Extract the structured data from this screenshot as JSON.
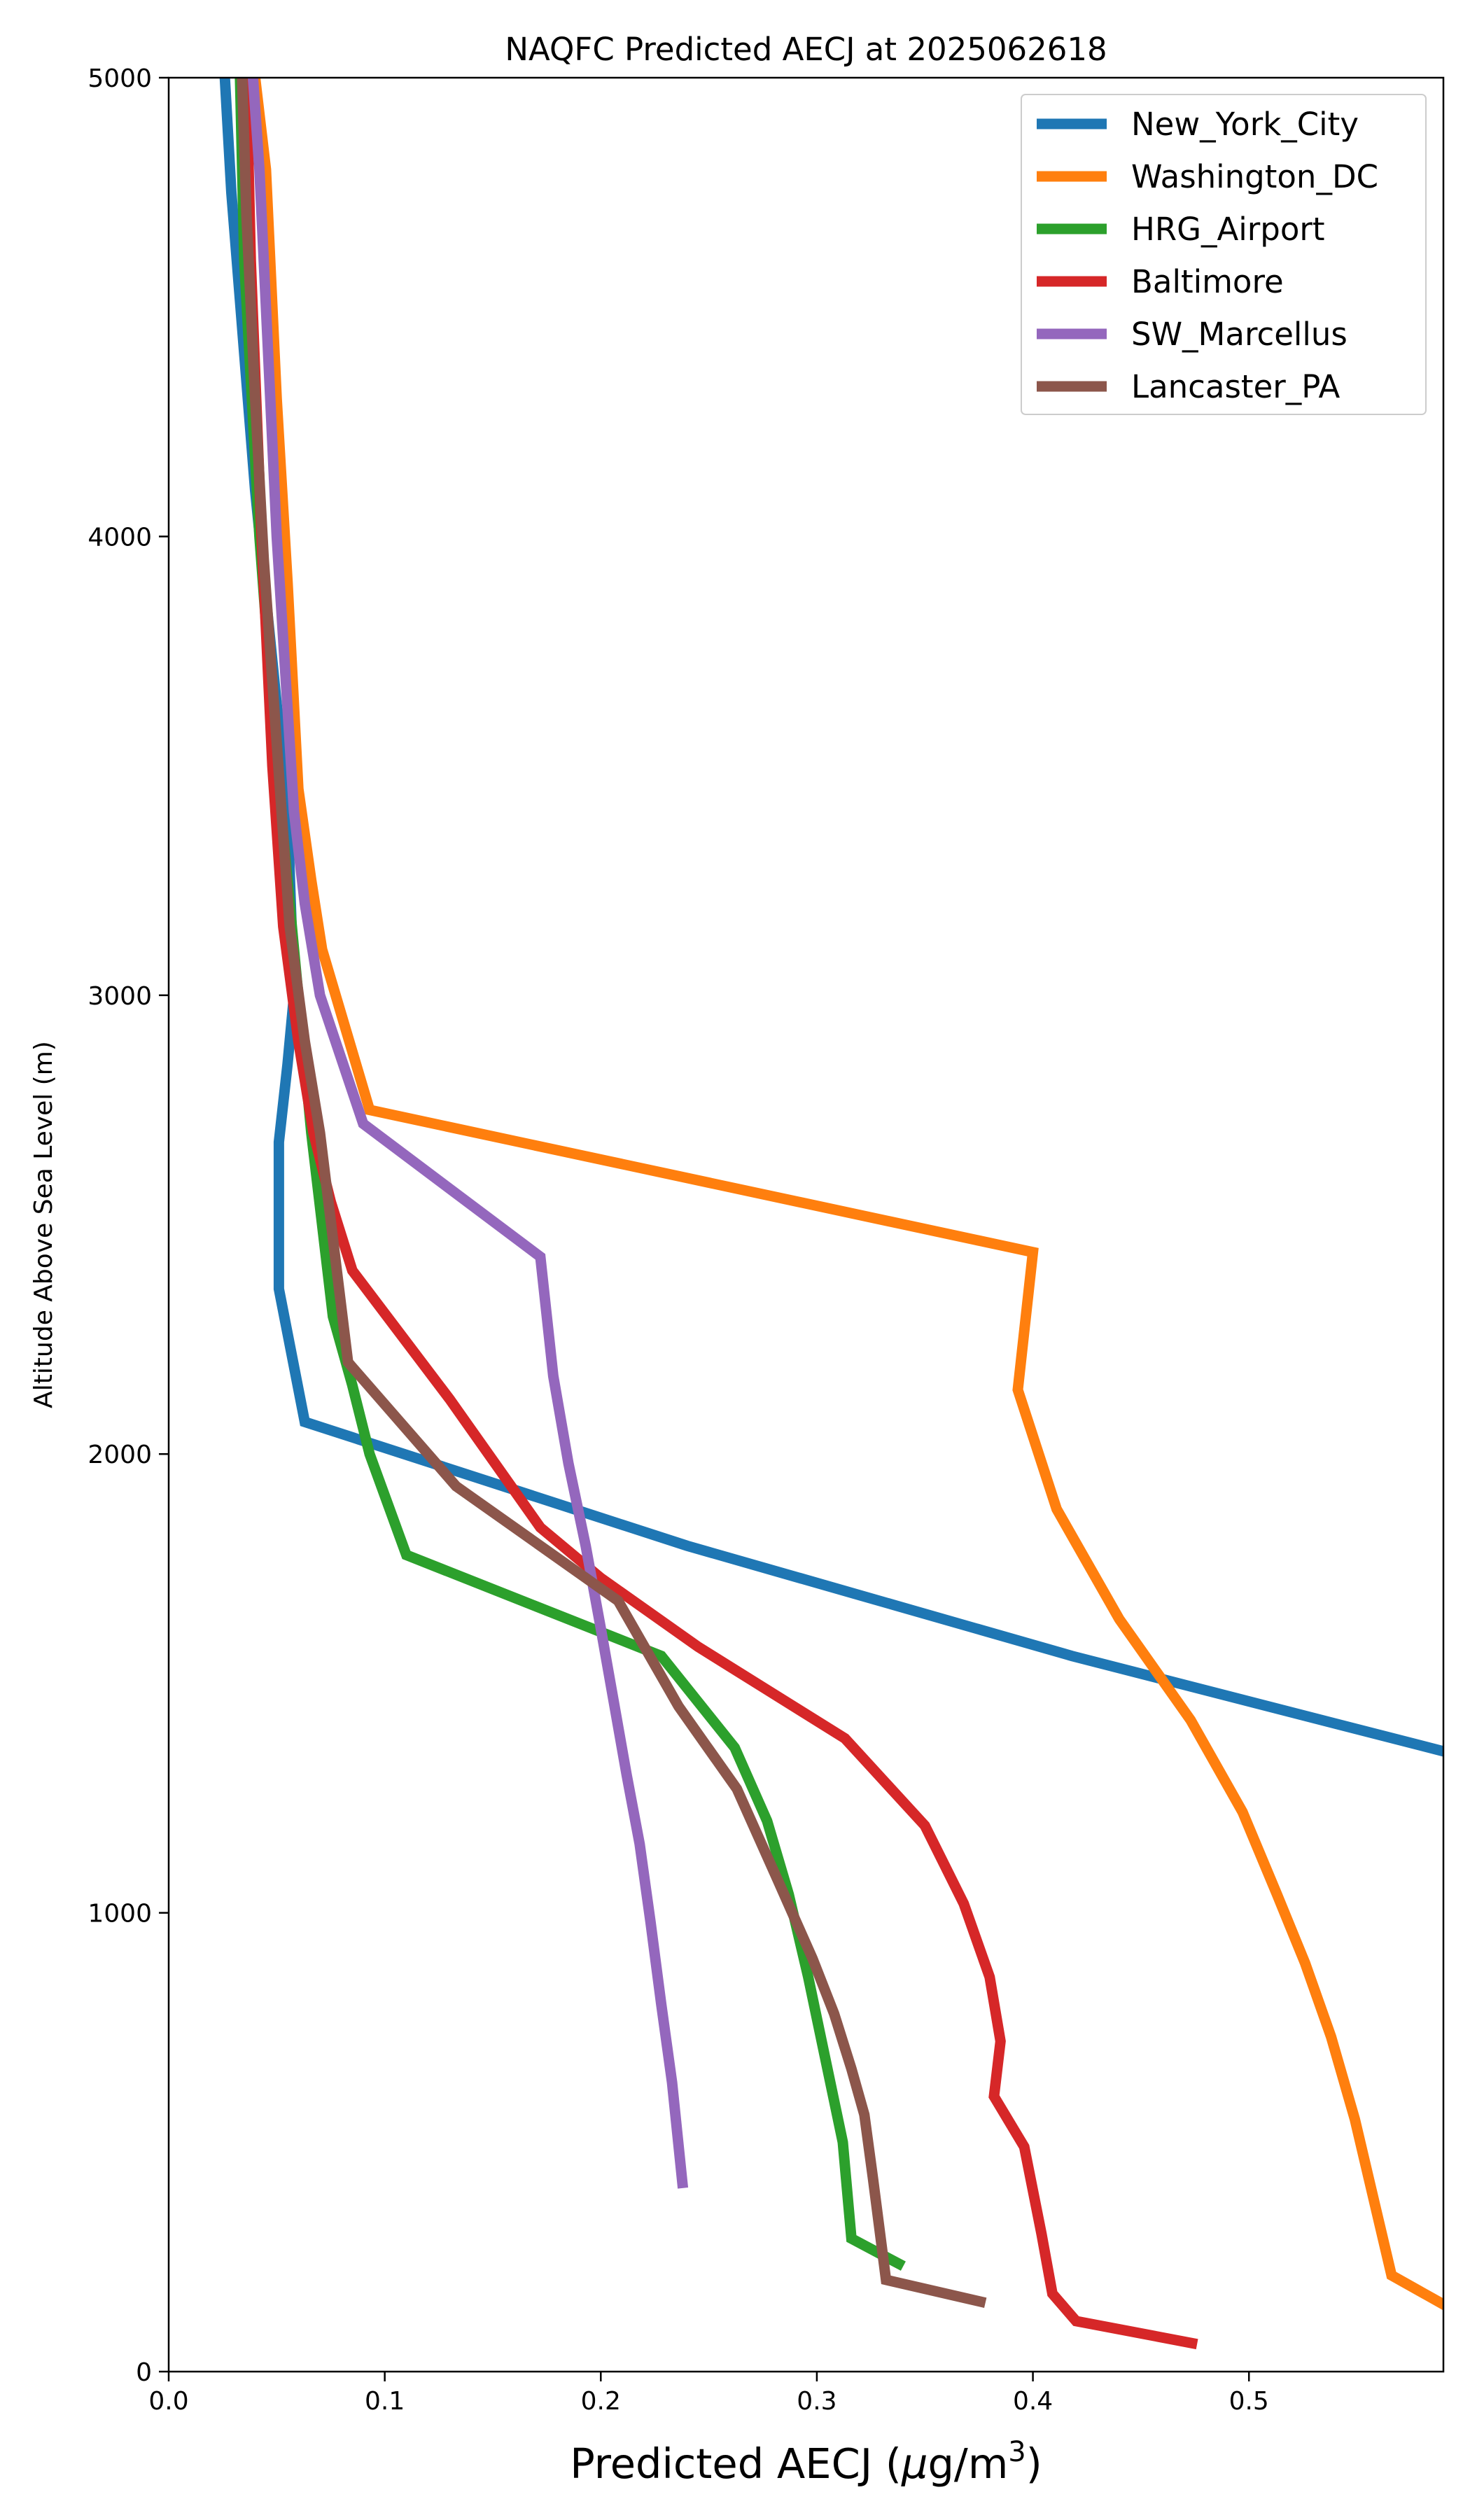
{
  "chart_data": {
    "type": "line",
    "title": "NAQFC Predicted AECJ at 2025062618",
    "xlabel_prefix": "Predicted AECJ (",
    "xlabel_mu": "μ",
    "xlabel_unit": "g/m",
    "xlabel_exp": "3",
    "xlabel_suffix": ")",
    "ylabel": "Altitude Above Sea Level (m)",
    "xlim": [
      0.0,
      0.59
    ],
    "ylim": [
      0,
      5000
    ],
    "xticks": [
      0.0,
      0.1,
      0.2,
      0.3,
      0.4,
      0.5
    ],
    "xtick_labels": [
      "0.0",
      "0.1",
      "0.2",
      "0.3",
      "0.4",
      "0.5"
    ],
    "yticks": [
      0,
      1000,
      2000,
      3000,
      4000,
      5000
    ],
    "ytick_labels": [
      "0",
      "1000",
      "2000",
      "3000",
      "4000",
      "5000"
    ],
    "grid": false,
    "legend_position": "top-right",
    "series": [
      {
        "name": "New_York_City",
        "color": "#1f77b4",
        "x": [
          0.026,
          0.029,
          0.04,
          0.055,
          0.058,
          0.055,
          0.051,
          0.051,
          0.063,
          0.24,
          0.418,
          0.6
        ],
        "y": [
          5000,
          4750,
          4100,
          3400,
          3000,
          2850,
          2680,
          2360,
          2070,
          1800,
          1560,
          1340
        ]
      },
      {
        "name": "Washington_DC",
        "color": "#ff7f0e",
        "x": [
          0.04,
          0.045,
          0.05,
          0.055,
          0.06,
          0.066,
          0.071,
          0.093,
          0.4,
          0.393,
          0.411,
          0.44,
          0.473,
          0.497,
          0.513,
          0.526,
          0.538,
          0.549,
          0.56,
          0.566,
          0.6
        ],
        "y": [
          5000,
          4800,
          4300,
          3900,
          3450,
          3250,
          3100,
          2750,
          2440,
          2140,
          1880,
          1640,
          1420,
          1220,
          1040,
          890,
          730,
          550,
          330,
          210,
          120
        ]
      },
      {
        "name": "HRG_Airport",
        "color": "#2ca02c",
        "x": [
          0.033,
          0.035,
          0.042,
          0.05,
          0.058,
          0.066,
          0.076,
          0.085,
          0.093,
          0.11,
          0.228,
          0.262,
          0.277,
          0.287,
          0.296,
          0.304,
          0.312,
          0.316,
          0.34
        ],
        "y": [
          5000,
          4600,
          4000,
          3500,
          3100,
          2700,
          2300,
          2150,
          2000,
          1780,
          1560,
          1360,
          1200,
          1040,
          860,
          680,
          500,
          290,
          230
        ]
      },
      {
        "name": "Baltimore",
        "color": "#d62728",
        "x": [
          0.036,
          0.038,
          0.043,
          0.048,
          0.053,
          0.06,
          0.067,
          0.075,
          0.085,
          0.13,
          0.172,
          0.2,
          0.245,
          0.313,
          0.35,
          0.368,
          0.38,
          0.385,
          0.382,
          0.396,
          0.404,
          0.409,
          0.42,
          0.476
        ],
        "y": [
          5000,
          4600,
          4000,
          3500,
          3150,
          2900,
          2700,
          2550,
          2400,
          2120,
          1840,
          1730,
          1580,
          1380,
          1190,
          1020,
          860,
          720,
          600,
          490,
          300,
          170,
          110,
          60
        ]
      },
      {
        "name": "SW_Marcellus",
        "color": "#9467bd",
        "x": [
          0.039,
          0.042,
          0.046,
          0.05,
          0.054,
          0.058,
          0.063,
          0.07,
          0.09,
          0.172,
          0.178,
          0.185,
          0.193,
          0.2,
          0.206,
          0.212,
          0.218,
          0.223,
          0.228,
          0.233,
          0.238
        ],
        "y": [
          5000,
          4800,
          4400,
          4000,
          3700,
          3400,
          3200,
          3000,
          2720,
          2430,
          2170,
          1980,
          1800,
          1620,
          1460,
          1300,
          1150,
          980,
          800,
          630,
          400
        ]
      },
      {
        "name": "Lancaster_PA",
        "color": "#8c564b",
        "x": [
          0.034,
          0.036,
          0.04,
          0.044,
          0.05,
          0.056,
          0.063,
          0.07,
          0.083,
          0.133,
          0.208,
          0.236,
          0.263,
          0.282,
          0.298,
          0.308,
          0.316,
          0.322,
          0.326,
          0.332,
          0.378
        ],
        "y": [
          5000,
          4700,
          4300,
          3950,
          3550,
          3150,
          2900,
          2700,
          2200,
          1930,
          1680,
          1450,
          1270,
          1070,
          900,
          780,
          660,
          560,
          420,
          200,
          150
        ]
      }
    ]
  }
}
